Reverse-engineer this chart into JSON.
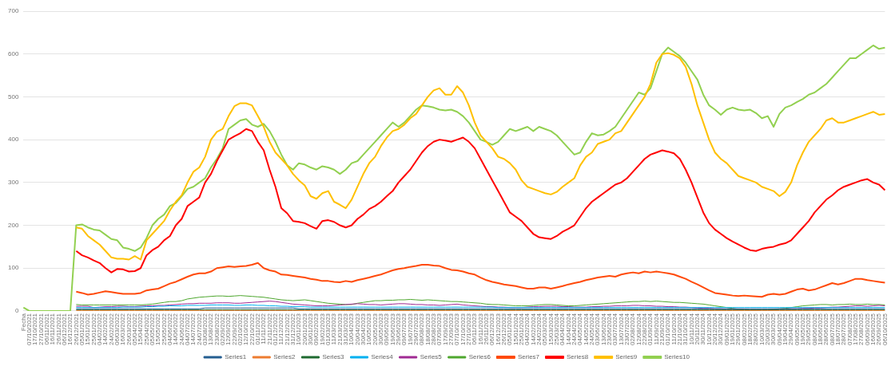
{
  "chart_data": {
    "type": "line",
    "categories": [
      "Fecha",
      "07/10/2021",
      "17/10/2021",
      "27/10/2021",
      "06/11/2021",
      "16/11/2021",
      "26/11/2021",
      "06/12/2021",
      "16/12/2021",
      "26/12/2021",
      "05/01/2022",
      "15/01/2022",
      "25/01/2022",
      "04/02/2022",
      "14/02/2022",
      "24/02/2022",
      "06/03/2022",
      "16/03/2022",
      "26/03/2022",
      "05/04/2022",
      "15/04/2022",
      "25/04/2022",
      "05/05/2022",
      "15/05/2022",
      "25/05/2022",
      "04/06/2022",
      "14/06/2022",
      "24/06/2022",
      "04/07/2022",
      "14/07/2022",
      "24/07/2022",
      "03/08/2022",
      "13/08/2022",
      "23/08/2022",
      "02/09/2022",
      "12/09/2022",
      "22/09/2022",
      "02/10/2022",
      "12/10/2022",
      "22/10/2022",
      "01/11/2022",
      "11/11/2022",
      "21/11/2022",
      "01/12/2022",
      "11/12/2022",
      "21/12/2022",
      "31/12/2022",
      "10/01/2023",
      "20/01/2023",
      "30/01/2023",
      "09/02/2023",
      "19/02/2023",
      "01/03/2023",
      "11/03/2023",
      "21/03/2023",
      "31/03/2023",
      "10/04/2023",
      "20/04/2023",
      "30/04/2023",
      "10/05/2023",
      "20/05/2023",
      "30/05/2023",
      "09/06/2023",
      "19/06/2023",
      "29/06/2023",
      "09/07/2023",
      "19/07/2023",
      "29/07/2023",
      "08/08/2023",
      "18/08/2023",
      "28/08/2023",
      "07/09/2023",
      "17/09/2023",
      "27/09/2023",
      "07/10/2023",
      "17/10/2023",
      "27/10/2023",
      "06/11/2023",
      "16/11/2023",
      "26/11/2023",
      "06/12/2023",
      "16/12/2023",
      "26/12/2023",
      "05/01/2024",
      "15/01/2024",
      "25/01/2024",
      "04/02/2024",
      "14/02/2024",
      "24/02/2024",
      "05/03/2024",
      "15/03/2024",
      "25/03/2024",
      "04/04/2024",
      "14/04/2024",
      "24/04/2024",
      "04/05/2024",
      "14/05/2024",
      "24/05/2024",
      "03/06/2024",
      "13/06/2024",
      "23/06/2024",
      "03/07/2024",
      "13/07/2024",
      "23/07/2024",
      "02/08/2024",
      "12/08/2024",
      "22/08/2024",
      "01/09/2024",
      "11/09/2024",
      "21/09/2024",
      "01/10/2024",
      "11/10/2024",
      "21/10/2024",
      "31/10/2024",
      "10/11/2024",
      "20/11/2024",
      "30/11/2024",
      "10/12/2024",
      "20/12/2024",
      "30/12/2024",
      "09/01/2025",
      "19/01/2025",
      "29/01/2025",
      "08/02/2025",
      "18/02/2025",
      "28/02/2025",
      "10/03/2025",
      "20/03/2025",
      "30/03/2025",
      "09/04/2025",
      "19/04/2025",
      "29/04/2025",
      "09/05/2025",
      "19/05/2025",
      "29/05/2025",
      "08/06/2025",
      "18/06/2025",
      "28/06/2025",
      "08/07/2025",
      "18/07/2025",
      "28/07/2025",
      "07/08/2025",
      "17/08/2025",
      "27/08/2025",
      "06/09/2025",
      "16/09/2025",
      "26/09/2025",
      "06/10/2025"
    ],
    "series": [
      {
        "name": "Series1",
        "color": "#255e91",
        "values": [
          null,
          null,
          null,
          null,
          null,
          null,
          null,
          null,
          null,
          5,
          5,
          5,
          5,
          5,
          5,
          5,
          5,
          5,
          5,
          5,
          5,
          5,
          5,
          5,
          5,
          5,
          5,
          5,
          5,
          5,
          5,
          7,
          7,
          7,
          7,
          7,
          7,
          7,
          7,
          7,
          7,
          7,
          7,
          7,
          7,
          7,
          7,
          5,
          5,
          5,
          5,
          5,
          5,
          5,
          5,
          5,
          5,
          5,
          5,
          5,
          5,
          5,
          5,
          5,
          5,
          5,
          5,
          5,
          5,
          5,
          5,
          5,
          5,
          5,
          5,
          5,
          5,
          5,
          5,
          5,
          5,
          5,
          5,
          5,
          5,
          5,
          5,
          5,
          5,
          5,
          5,
          5,
          5,
          5,
          5,
          5,
          5,
          5,
          5,
          5,
          5,
          5,
          5,
          5,
          5,
          5,
          5,
          5,
          5,
          5,
          5,
          5,
          5,
          5,
          5,
          5,
          5,
          5,
          5,
          5,
          5,
          5,
          5,
          5,
          5,
          5,
          5,
          5,
          5,
          5,
          5,
          5,
          5,
          5,
          5,
          5,
          5,
          5,
          5,
          5,
          5,
          5,
          5,
          5,
          5,
          5,
          5,
          5
        ]
      },
      {
        "name": "Series2",
        "color": "#ed7d31",
        "values": [
          null,
          null,
          null,
          null,
          null,
          null,
          null,
          null,
          null,
          1,
          1,
          1,
          1,
          1,
          1,
          1,
          1,
          1,
          1,
          1,
          1,
          1,
          1,
          1,
          1,
          1,
          1,
          1,
          1,
          1,
          1,
          1,
          1,
          1,
          1,
          1,
          1,
          1,
          1,
          1,
          1,
          1,
          1,
          1,
          1,
          1,
          1,
          1,
          1,
          1,
          1,
          1,
          1,
          1,
          1,
          1,
          1,
          1,
          1,
          1,
          1,
          1,
          1,
          1,
          1,
          1,
          1,
          1,
          1,
          1,
          1,
          1,
          1,
          1,
          1,
          1,
          1,
          1,
          1,
          1,
          1,
          1,
          1,
          1,
          1,
          1,
          1,
          1,
          1,
          1,
          1,
          1,
          1,
          1,
          1,
          1,
          1,
          1,
          1,
          1,
          1,
          1,
          1,
          1,
          1,
          1,
          1,
          1,
          1,
          1,
          1,
          1,
          1,
          1,
          1,
          1,
          1,
          1,
          1,
          1,
          1,
          1,
          1,
          1,
          1,
          1,
          1,
          1,
          1,
          1,
          1,
          1,
          1,
          1,
          1,
          1,
          1,
          1,
          1,
          1,
          1,
          1,
          1,
          1,
          1,
          1,
          1,
          1
        ]
      },
      {
        "name": "Series3",
        "color": "#1e6b30",
        "values": [
          null,
          null,
          null,
          null,
          null,
          null,
          null,
          null,
          null,
          3,
          3,
          3,
          3,
          3,
          3,
          3,
          3,
          3,
          3,
          3,
          3,
          3,
          3,
          3,
          3,
          3,
          3,
          3,
          3,
          3,
          3,
          3,
          3,
          3,
          3,
          3,
          3,
          3,
          3,
          3,
          3,
          3,
          3,
          3,
          3,
          3,
          3,
          3,
          3,
          3,
          3,
          3,
          3,
          3,
          3,
          3,
          3,
          3,
          3,
          3,
          3,
          3,
          3,
          3,
          3,
          3,
          3,
          3,
          3,
          3,
          3,
          3,
          3,
          3,
          3,
          3,
          3,
          3,
          3,
          3,
          3,
          3,
          3,
          3,
          3,
          3,
          3,
          3,
          3,
          3,
          3,
          3,
          3,
          3,
          3,
          3,
          3,
          3,
          3,
          3,
          3,
          3,
          3,
          3,
          3,
          3,
          3,
          3,
          3,
          3,
          3,
          3,
          3,
          3,
          3,
          3,
          3,
          3,
          3,
          3,
          3,
          3,
          3,
          3,
          3,
          3,
          3,
          3,
          3,
          3,
          3,
          3,
          3,
          3,
          3,
          3,
          3,
          3,
          3,
          3,
          3,
          3,
          3,
          3,
          3,
          3,
          3,
          3
        ]
      },
      {
        "name": "Series4",
        "color": "#00b0f0",
        "values": [
          null,
          null,
          null,
          null,
          null,
          null,
          null,
          null,
          null,
          8,
          8,
          8,
          8,
          8,
          8,
          8,
          8,
          9,
          9,
          9,
          9,
          10,
          10,
          11,
          11,
          12,
          12,
          12,
          13,
          13,
          13,
          13,
          14,
          14,
          14,
          14,
          13,
          13,
          14,
          14,
          13,
          13,
          12,
          12,
          11,
          11,
          10,
          10,
          10,
          9,
          9,
          9,
          9,
          9,
          9,
          9,
          9,
          9,
          9,
          9,
          9,
          9,
          9,
          9,
          9,
          9,
          9,
          9,
          9,
          9,
          9,
          9,
          9,
          9,
          9,
          9,
          9,
          9,
          9,
          9,
          9,
          8,
          8,
          8,
          8,
          8,
          8,
          8,
          8,
          8,
          8,
          8,
          8,
          8,
          8,
          8,
          8,
          8,
          8,
          8,
          8,
          8,
          8,
          8,
          8,
          8,
          8,
          8,
          8,
          8,
          8,
          8,
          8,
          8,
          8,
          8,
          8,
          8,
          8,
          8,
          8,
          8,
          8,
          8,
          8,
          8,
          8,
          8,
          8,
          8,
          8,
          8,
          8,
          8,
          8,
          8,
          8,
          8,
          8,
          8,
          8,
          8,
          8,
          8,
          8,
          8,
          8,
          8
        ]
      },
      {
        "name": "Series5",
        "color": "#a02b93",
        "values": [
          null,
          null,
          null,
          null,
          null,
          null,
          null,
          null,
          null,
          11,
          11,
          11,
          8,
          9,
          10,
          10,
          11,
          11,
          10,
          10,
          11,
          12,
          12,
          13,
          13,
          14,
          15,
          16,
          17,
          17,
          18,
          18,
          18,
          19,
          19,
          19,
          18,
          18,
          19,
          20,
          21,
          22,
          23,
          22,
          20,
          18,
          16,
          15,
          14,
          13,
          12,
          12,
          12,
          13,
          14,
          15,
          16,
          17,
          16,
          15,
          15,
          14,
          15,
          16,
          17,
          17,
          16,
          15,
          15,
          14,
          14,
          13,
          14,
          15,
          16,
          14,
          13,
          12,
          11,
          10,
          10,
          9,
          9,
          8,
          8,
          8,
          9,
          10,
          10,
          11,
          11,
          11,
          10,
          10,
          9,
          9,
          9,
          10,
          10,
          11,
          11,
          12,
          12,
          12,
          13,
          13,
          12,
          12,
          11,
          11,
          10,
          10,
          9,
          9,
          8,
          7,
          6,
          6,
          5,
          5,
          4,
          4,
          4,
          4,
          3,
          3,
          3,
          3,
          3,
          4,
          4,
          5,
          5,
          6,
          6,
          7,
          7,
          8,
          9,
          9,
          10,
          11,
          12,
          12,
          11,
          12,
          13,
          12
        ]
      },
      {
        "name": "Series6",
        "color": "#4ea72e",
        "values": [
          null,
          null,
          null,
          null,
          null,
          null,
          null,
          null,
          null,
          15,
          14,
          14,
          14,
          14,
          14,
          14,
          14,
          14,
          14,
          14,
          14,
          15,
          16,
          18,
          20,
          22,
          22,
          24,
          28,
          30,
          32,
          33,
          34,
          35,
          35,
          34,
          35,
          36,
          35,
          34,
          33,
          32,
          30,
          28,
          26,
          25,
          24,
          25,
          26,
          24,
          22,
          20,
          18,
          17,
          16,
          15,
          15,
          18,
          20,
          22,
          24,
          24,
          25,
          25,
          26,
          26,
          27,
          26,
          25,
          26,
          25,
          24,
          23,
          22,
          22,
          21,
          20,
          19,
          18,
          16,
          15,
          15,
          14,
          13,
          12,
          12,
          12,
          13,
          14,
          15,
          15,
          14,
          13,
          12,
          12,
          13,
          14,
          15,
          16,
          17,
          18,
          19,
          20,
          21,
          22,
          22,
          23,
          22,
          23,
          22,
          21,
          20,
          20,
          19,
          18,
          17,
          16,
          14,
          12,
          10,
          8,
          6,
          4,
          3,
          2,
          2,
          3,
          3,
          4,
          5,
          6,
          8,
          10,
          12,
          13,
          14,
          15,
          15,
          14,
          15,
          15,
          16,
          15,
          15,
          16,
          15,
          15,
          14
        ]
      },
      {
        "name": "Series7",
        "color": "#ff4a0a",
        "values": [
          null,
          null,
          null,
          null,
          null,
          null,
          null,
          null,
          null,
          45,
          42,
          38,
          40,
          43,
          46,
          44,
          42,
          40,
          40,
          40,
          42,
          48,
          50,
          52,
          58,
          64,
          68,
          74,
          80,
          85,
          88,
          88,
          92,
          100,
          102,
          104,
          103,
          104,
          105,
          108,
          112,
          100,
          95,
          92,
          85,
          84,
          82,
          80,
          78,
          75,
          73,
          70,
          70,
          68,
          67,
          70,
          68,
          72,
          75,
          78,
          82,
          85,
          90,
          95,
          98,
          100,
          103,
          105,
          108,
          108,
          106,
          105,
          100,
          96,
          95,
          92,
          88,
          85,
          78,
          72,
          68,
          65,
          62,
          60,
          58,
          55,
          52,
          52,
          55,
          55,
          52,
          55,
          58,
          62,
          65,
          68,
          72,
          75,
          78,
          80,
          82,
          80,
          85,
          88,
          90,
          88,
          92,
          90,
          92,
          90,
          88,
          85,
          80,
          75,
          68,
          62,
          55,
          48,
          42,
          40,
          38,
          36,
          35,
          36,
          35,
          34,
          33,
          38,
          40,
          38,
          40,
          45,
          50,
          52,
          48,
          50,
          55,
          60,
          65,
          62,
          65,
          70,
          75,
          75,
          72,
          70,
          68,
          66
        ]
      },
      {
        "name": "Series8",
        "color": "#ff0000",
        "values": [
          null,
          null,
          null,
          null,
          null,
          null,
          null,
          null,
          null,
          140,
          130,
          125,
          118,
          112,
          100,
          90,
          98,
          97,
          92,
          93,
          100,
          130,
          142,
          150,
          165,
          175,
          200,
          215,
          245,
          255,
          265,
          300,
          320,
          350,
          375,
          400,
          408,
          415,
          425,
          420,
          395,
          375,
          330,
          290,
          240,
          228,
          210,
          208,
          205,
          198,
          192,
          210,
          212,
          208,
          200,
          195,
          200,
          215,
          225,
          238,
          245,
          255,
          268,
          280,
          300,
          315,
          330,
          350,
          370,
          385,
          395,
          400,
          398,
          395,
          400,
          405,
          395,
          380,
          355,
          330,
          305,
          280,
          255,
          230,
          220,
          210,
          195,
          180,
          172,
          170,
          168,
          175,
          185,
          192,
          200,
          220,
          240,
          255,
          265,
          275,
          285,
          295,
          300,
          310,
          325,
          340,
          355,
          365,
          370,
          375,
          372,
          368,
          355,
          330,
          300,
          265,
          230,
          205,
          190,
          180,
          170,
          162,
          155,
          148,
          142,
          140,
          145,
          148,
          150,
          155,
          158,
          165,
          180,
          195,
          210,
          230,
          245,
          260,
          270,
          282,
          290,
          295,
          300,
          305,
          308,
          300,
          295,
          282
        ]
      },
      {
        "name": "Series9",
        "color": "#ffc000",
        "values": [
          null,
          null,
          null,
          null,
          null,
          null,
          null,
          null,
          null,
          195,
          192,
          175,
          165,
          155,
          140,
          125,
          122,
          122,
          120,
          128,
          120,
          165,
          180,
          195,
          210,
          235,
          255,
          270,
          300,
          325,
          335,
          360,
          400,
          418,
          425,
          455,
          478,
          485,
          485,
          480,
          455,
          430,
          395,
          370,
          355,
          340,
          320,
          305,
          293,
          268,
          262,
          275,
          280,
          255,
          248,
          240,
          260,
          290,
          320,
          345,
          360,
          385,
          405,
          420,
          425,
          435,
          450,
          460,
          480,
          500,
          515,
          520,
          505,
          505,
          525,
          510,
          480,
          440,
          410,
          395,
          380,
          360,
          355,
          345,
          330,
          305,
          290,
          285,
          280,
          275,
          272,
          278,
          290,
          300,
          310,
          340,
          360,
          370,
          390,
          395,
          400,
          415,
          420,
          440,
          460,
          480,
          500,
          530,
          580,
          600,
          602,
          598,
          590,
          570,
          530,
          480,
          440,
          400,
          370,
          355,
          345,
          330,
          315,
          310,
          305,
          300,
          290,
          285,
          280,
          268,
          278,
          300,
          340,
          370,
          395,
          410,
          425,
          445,
          450,
          440,
          440,
          445,
          450,
          455,
          460,
          465,
          458,
          460
        ]
      },
      {
        "name": "Series10",
        "color": "#92d050",
        "values": [
          8,
          0,
          0,
          0,
          0,
          0,
          0,
          0,
          0,
          200,
          202,
          195,
          190,
          188,
          178,
          168,
          165,
          148,
          145,
          140,
          148,
          170,
          200,
          215,
          225,
          245,
          252,
          268,
          285,
          290,
          300,
          310,
          335,
          355,
          380,
          425,
          435,
          445,
          448,
          435,
          430,
          437,
          420,
          395,
          365,
          340,
          330,
          345,
          342,
          335,
          330,
          338,
          335,
          330,
          320,
          330,
          345,
          350,
          365,
          380,
          395,
          410,
          425,
          440,
          430,
          440,
          455,
          470,
          480,
          478,
          475,
          470,
          468,
          470,
          465,
          455,
          440,
          420,
          400,
          395,
          388,
          395,
          410,
          425,
          420,
          425,
          430,
          420,
          430,
          425,
          420,
          410,
          395,
          380,
          365,
          370,
          395,
          415,
          410,
          412,
          420,
          430,
          450,
          470,
          490,
          510,
          505,
          520,
          560,
          600,
          615,
          605,
          595,
          580,
          560,
          540,
          505,
          480,
          470,
          458,
          470,
          475,
          470,
          468,
          470,
          462,
          450,
          455,
          430,
          460,
          475,
          480,
          488,
          495,
          505,
          510,
          520,
          530,
          545,
          560,
          575,
          590,
          590,
          600,
          610,
          620,
          612,
          615
        ]
      }
    ],
    "ylim": [
      0,
      700
    ],
    "yticks": [
      0,
      100,
      200,
      300,
      400,
      500,
      600,
      700
    ],
    "grid": "y",
    "legend": "bottom",
    "marker": "none"
  }
}
